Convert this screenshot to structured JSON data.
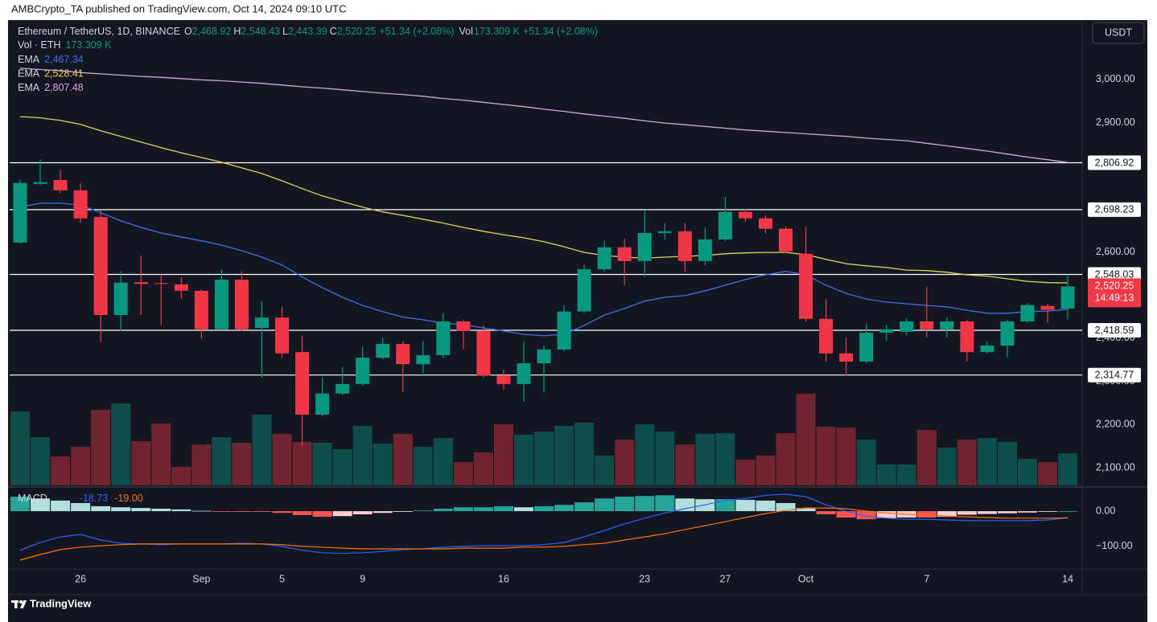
{
  "header": {
    "publisher": "AMBCrypto_TA published on TradingView.com, Oct 14, 2024 09:10 UTC",
    "brand": "TradingView",
    "currency": "USDT"
  },
  "chart_data": {
    "type": "candlestick",
    "symbol": "Ethereum / TetherUS, 1D, BINANCE",
    "ohlc": [
      {
        "key": "O",
        "label": "2,468.92"
      },
      {
        "key": "H",
        "label": "2,548.43"
      },
      {
        "key": "L",
        "label": "2,443.39"
      },
      {
        "key": "C",
        "label": "2,520.25"
      }
    ],
    "change": "+51.34 (+2.08%)",
    "volume_legend": {
      "name": "Vol",
      "title": "Vol · ETH",
      "label": "173.309 K",
      "change": "+51.34 (+2.08%)"
    },
    "up_color": "#089981",
    "down_color": "#f23645",
    "categories": [
      null,
      null,
      null,
      "26",
      null,
      null,
      null,
      null,
      null,
      "Sep",
      null,
      null,
      null,
      "5",
      null,
      null,
      null,
      "9",
      null,
      null,
      null,
      null,
      null,
      null,
      "16",
      null,
      null,
      null,
      null,
      null,
      null,
      "23",
      null,
      null,
      null,
      "27",
      null,
      null,
      null,
      "Oct",
      null,
      null,
      null,
      null,
      null,
      "7",
      null,
      null,
      null,
      null,
      null,
      null,
      "14"
    ],
    "open": [
      2622,
      2758,
      2767,
      2743,
      2681,
      2454,
      2530,
      2528,
      2525,
      2510,
      2421,
      2536,
      2424,
      2448,
      2368,
      2223,
      2272,
      2294,
      2355,
      2387,
      2340,
      2361,
      2439,
      2417,
      2314,
      2294,
      2342,
      2374,
      2462,
      2560,
      2611,
      2579,
      2644,
      2648,
      2579,
      2629,
      2693,
      2678,
      2654,
      2596,
      2445,
      2365,
      2346,
      2413,
      2415,
      2439,
      2421,
      2439,
      2368,
      2383,
      2439,
      2475,
      2468.92
    ],
    "high": [
      2768,
      2815,
      2790,
      2760,
      2696,
      2555,
      2592,
      2551,
      2542,
      2514,
      2560,
      2555,
      2486,
      2473,
      2406,
      2309,
      2333,
      2380,
      2402,
      2393,
      2393,
      2458,
      2443,
      2430,
      2327,
      2393,
      2383,
      2477,
      2570,
      2626,
      2631,
      2696,
      2667,
      2667,
      2657,
      2728,
      2700,
      2685,
      2659,
      2659,
      2491,
      2402,
      2434,
      2430,
      2447,
      2519,
      2449,
      2443,
      2393,
      2443,
      2482,
      2480,
      2548.43
    ],
    "low": [
      2620,
      2755,
      2737,
      2668,
      2391,
      2417,
      2454,
      2430,
      2491,
      2400,
      2421,
      2417,
      2309,
      2355,
      2150,
      2219,
      2268,
      2290,
      2352,
      2275,
      2318,
      2354,
      2374,
      2309,
      2281,
      2253,
      2275,
      2370,
      2458,
      2555,
      2523,
      2542,
      2629,
      2555,
      2570,
      2626,
      2670,
      2644,
      2598,
      2439,
      2346,
      2313,
      2342,
      2393,
      2406,
      2402,
      2402,
      2346,
      2365,
      2355,
      2436,
      2436,
      2443.39
    ],
    "close": [
      2760,
      2762,
      2743,
      2678,
      2454,
      2529,
      2526,
      2526,
      2510,
      2421,
      2536,
      2421,
      2448,
      2365,
      2223,
      2272,
      2294,
      2355,
      2387,
      2340,
      2361,
      2439,
      2417,
      2314,
      2294,
      2342,
      2374,
      2462,
      2560,
      2611,
      2579,
      2644,
      2648,
      2579,
      2629,
      2693,
      2678,
      2654,
      2601,
      2445,
      2365,
      2346,
      2413,
      2421,
      2439,
      2421,
      2439,
      2368,
      2383,
      2439,
      2477,
      2466,
      2520.25
    ],
    "volume": [
      399,
      260,
      156,
      208,
      408,
      443,
      239,
      334,
      100,
      221,
      260,
      230,
      382,
      278,
      234,
      230,
      195,
      321,
      226,
      278,
      208,
      256,
      126,
      178,
      330,
      273,
      291,
      321,
      339,
      161,
      247,
      330,
      291,
      221,
      278,
      282,
      139,
      161,
      282,
      495,
      317,
      312,
      247,
      113,
      113,
      299,
      204,
      247,
      256,
      234,
      143,
      126,
      173.309
    ],
    "volume_ylim": [
      0,
      2500
    ],
    "ylim": [
      2059,
      3132
    ],
    "yticks": [
      {
        "value": 2100,
        "label": "2,100.00"
      },
      {
        "value": 2200,
        "label": "2,200.00"
      },
      {
        "value": 2300,
        "label": "2,300.00"
      },
      {
        "value": 2400,
        "label": "2,400.00"
      },
      {
        "value": 2600,
        "label": "2,600.00"
      },
      {
        "value": 2900,
        "label": "2,900.00"
      },
      {
        "value": 3000,
        "label": "3,000.00"
      }
    ],
    "levels": [
      {
        "value": 2806.92,
        "label": "2,806.92"
      },
      {
        "value": 2698.23,
        "label": "2,698.23"
      },
      {
        "value": 2548.03,
        "label": "2,548.03"
      },
      {
        "value": 2418.59,
        "label": "2,418.59"
      },
      {
        "value": 2314.77,
        "label": "2,314.77"
      }
    ],
    "last_price": {
      "value": 2520.25,
      "label": "2,520.25",
      "countdown": "14:49:13",
      "color": "#f23645"
    },
    "ema": [
      {
        "name": "EMA",
        "legend_value": "2,467.34",
        "color": "#3d6ee8",
        "values": [
          2704,
          2713,
          2713,
          2709,
          2691,
          2672,
          2657,
          2644,
          2635,
          2626,
          2616,
          2603,
          2588,
          2570,
          2542,
          2517,
          2495,
          2476,
          2462,
          2449,
          2443,
          2435,
          2432,
          2424,
          2417,
          2409,
          2406,
          2409,
          2430,
          2454,
          2469,
          2486,
          2495,
          2499,
          2510,
          2523,
          2536,
          2547,
          2555,
          2547,
          2523,
          2504,
          2491,
          2484,
          2480,
          2476,
          2473,
          2465,
          2458,
          2458,
          2462,
          2463,
          2467.34
        ]
      },
      {
        "name": "EMA",
        "legend_value": "2,528.41",
        "color": "#e6cf55",
        "values": [
          2914,
          2911,
          2905,
          2896,
          2881,
          2868,
          2855,
          2842,
          2830,
          2819,
          2808,
          2795,
          2782,
          2765,
          2747,
          2730,
          2717,
          2704,
          2693,
          2685,
          2676,
          2667,
          2657,
          2648,
          2640,
          2633,
          2624,
          2612,
          2599,
          2592,
          2588,
          2586,
          2588,
          2590,
          2592,
          2596,
          2598,
          2599,
          2599,
          2594,
          2583,
          2573,
          2568,
          2564,
          2558,
          2557,
          2553,
          2547,
          2544,
          2538,
          2532,
          2529,
          2528.41
        ]
      },
      {
        "name": "EMA",
        "legend_value": "2,807.48",
        "color": "#d7a2e3",
        "values": [
          3026,
          3023,
          3020,
          3016,
          3013,
          3010,
          3007,
          3005,
          3002,
          2999,
          2997,
          2994,
          2991,
          2987,
          2983,
          2980,
          2976,
          2972,
          2968,
          2965,
          2961,
          2956,
          2952,
          2947,
          2942,
          2937,
          2931,
          2926,
          2920,
          2915,
          2910,
          2904,
          2899,
          2895,
          2891,
          2887,
          2883,
          2880,
          2877,
          2874,
          2871,
          2868,
          2864,
          2861,
          2858,
          2852,
          2846,
          2840,
          2834,
          2827,
          2820,
          2814,
          2807.48
        ]
      }
    ],
    "macd": {
      "name": "MACD",
      "ylim": [
        -164,
        64
      ],
      "yticks": [
        {
          "value": 0,
          "label": "0.00"
        },
        {
          "value": -100,
          "label": "−100.00"
        }
      ],
      "histogram_colors": [
        "#26a69a",
        "#b2dfdb",
        "#ff5252",
        "#ffcdd2"
      ],
      "histogram": [
        41,
        36,
        30,
        23,
        14,
        11,
        9,
        7,
        5,
        1,
        -1,
        -2,
        -2,
        -5,
        -11,
        -16,
        -14,
        -9,
        -5,
        -2,
        2,
        7,
        11,
        11,
        14,
        11,
        14,
        18,
        25,
        36,
        41,
        43,
        45,
        36,
        34,
        34,
        32,
        30,
        23,
        9,
        -9,
        -18,
        -23,
        -20,
        -18,
        -18,
        -16,
        -10,
        -8,
        -6,
        -4,
        -2,
        0.27
      ],
      "macd": {
        "color": "#2962ff",
        "label": "-18.73",
        "values": [
          -111,
          -89,
          -73,
          -66,
          -82,
          -91,
          -93,
          -95,
          -93,
          -93,
          -93,
          -91,
          -93,
          -100,
          -111,
          -118,
          -120,
          -118,
          -114,
          -109,
          -107,
          -102,
          -100,
          -98,
          -98,
          -98,
          -95,
          -89,
          -73,
          -55,
          -36,
          -20,
          -5,
          7,
          18,
          30,
          36,
          45,
          48,
          41,
          18,
          0,
          -14,
          -20,
          -23,
          -23,
          -25,
          -27,
          -27,
          -27,
          -27,
          -25,
          -18.73
        ]
      },
      "signal": {
        "color": "#ff6d00",
        "label": "-19.00",
        "values": [
          -139,
          -123,
          -109,
          -102,
          -98,
          -95,
          -93,
          -93,
          -93,
          -93,
          -93,
          -93,
          -93,
          -95,
          -100,
          -102,
          -105,
          -107,
          -107,
          -107,
          -107,
          -107,
          -105,
          -105,
          -105,
          -102,
          -102,
          -100,
          -95,
          -91,
          -82,
          -73,
          -64,
          -52,
          -41,
          -30,
          -18,
          -7,
          2,
          9,
          9,
          7,
          0,
          -5,
          -9,
          -11,
          -14,
          -16,
          -18,
          -20,
          -20,
          -20,
          -19
        ]
      }
    }
  }
}
